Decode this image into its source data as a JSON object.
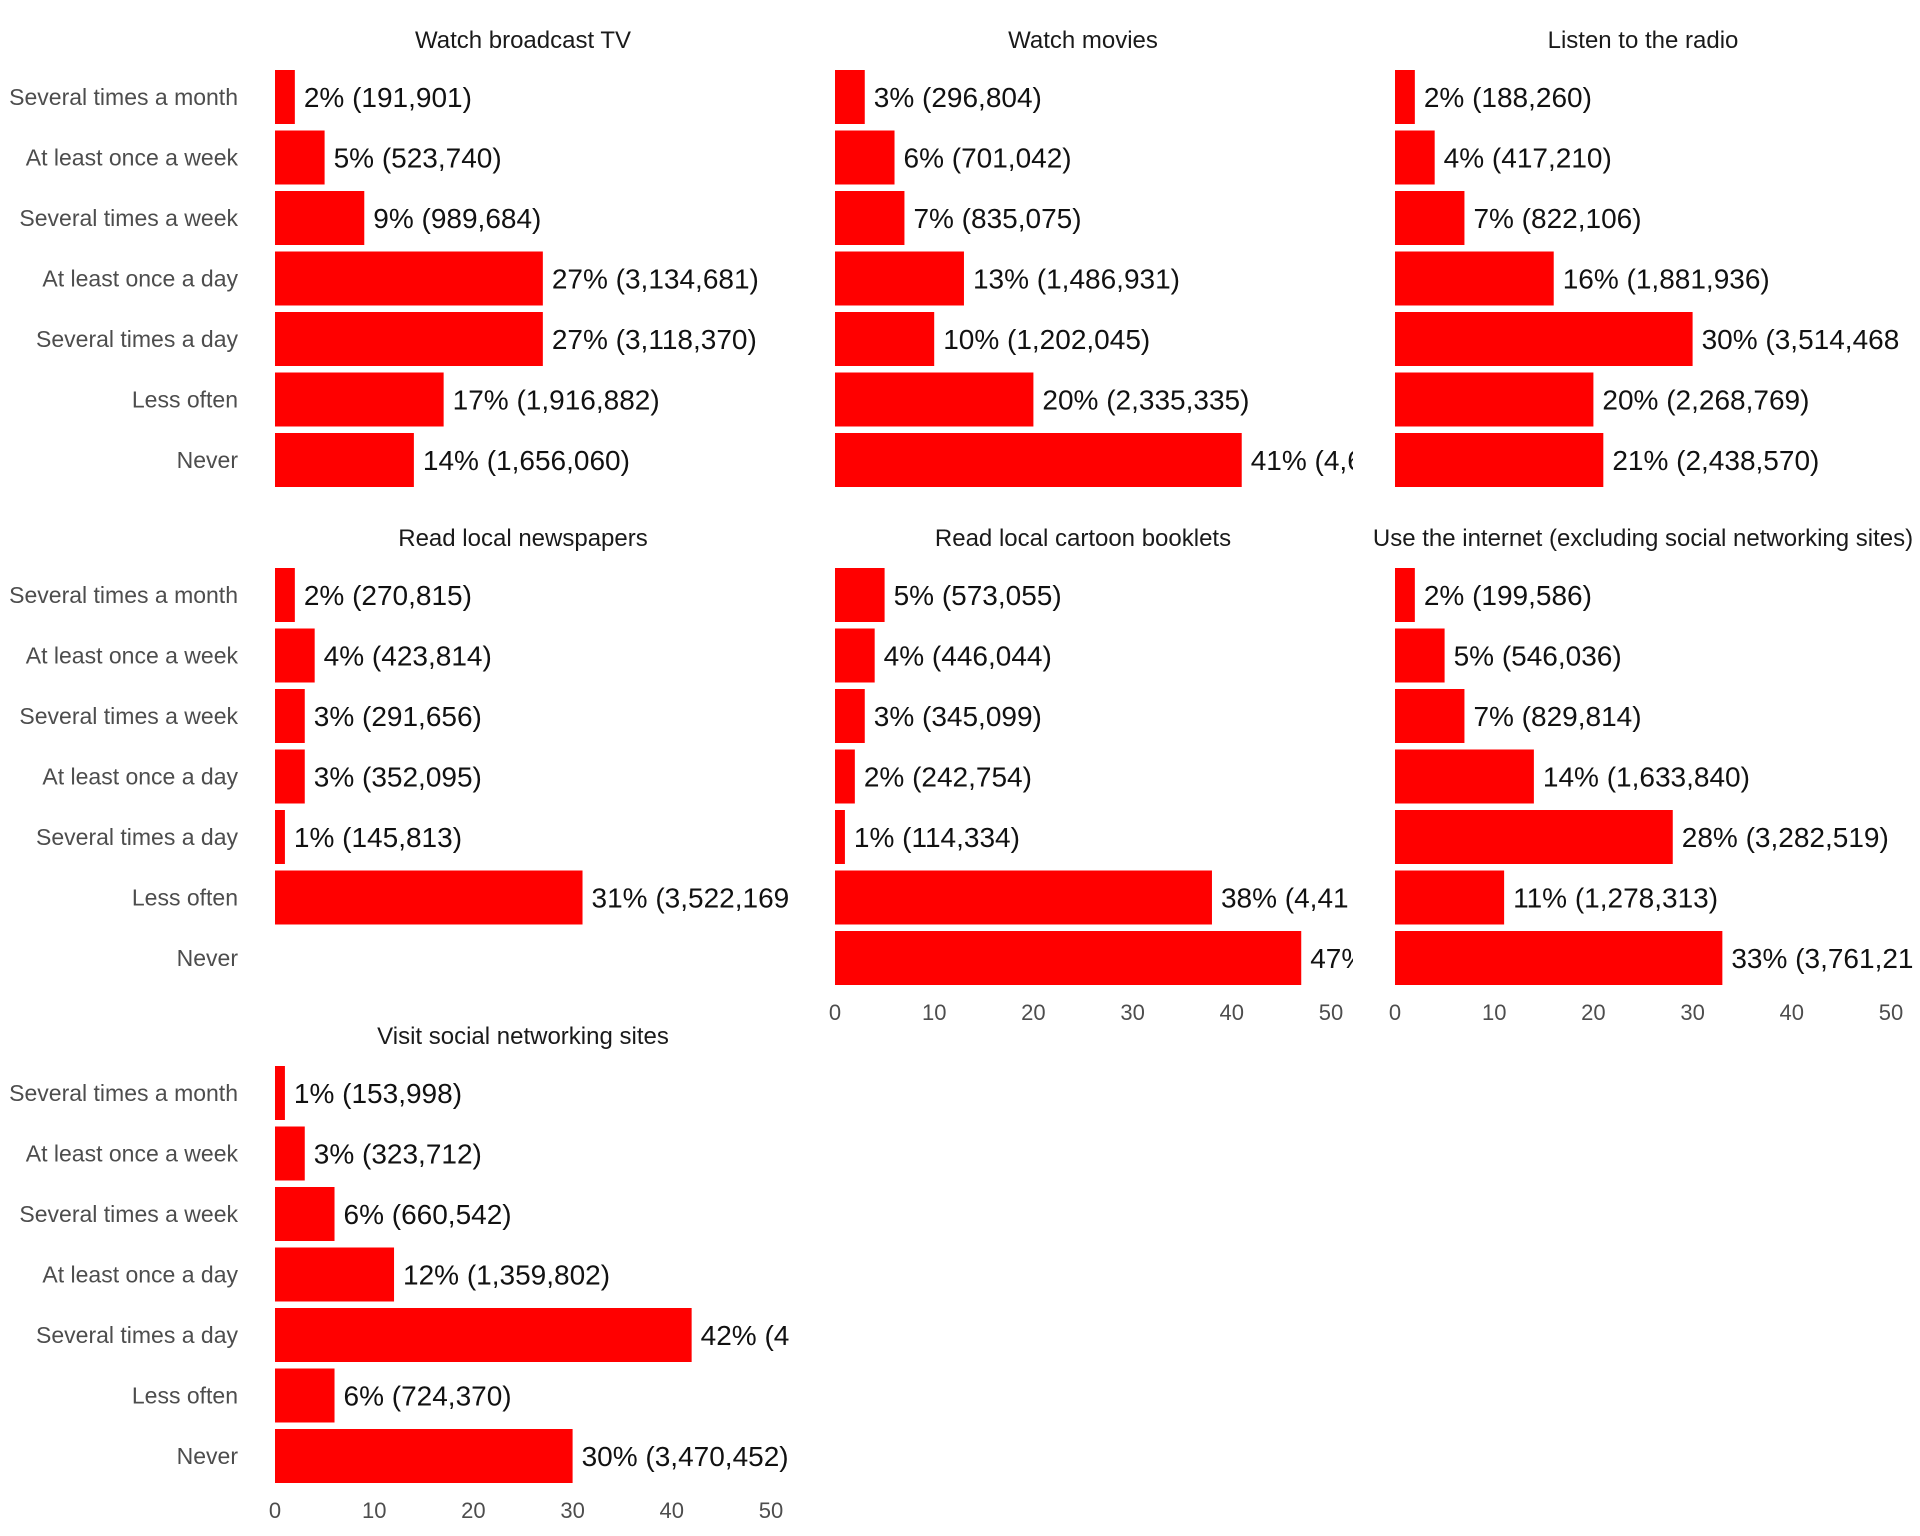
{
  "chart_data": {
    "type": "bar",
    "orientation": "horizontal",
    "bar_color": "#ff0000",
    "xlim": [
      0,
      50
    ],
    "x_ticks": [
      "0",
      "10",
      "20",
      "30",
      "40",
      "50"
    ],
    "categories": [
      "Several times a month",
      "At least once a week",
      "Several times a week",
      "At least once a day",
      "Several times a day",
      "Less often",
      "Never"
    ],
    "panels": [
      {
        "title": "Watch broadcast TV",
        "values": [
          2,
          5,
          9,
          27,
          27,
          17,
          14
        ],
        "labels": [
          "2% (191,901)",
          "5% (523,740)",
          "9% (989,684)",
          "27% (3,134,681)",
          "27% (3,118,370)",
          "17% (1,916,882)",
          "14% (1,656,060)"
        ]
      },
      {
        "title": "Watch movies",
        "values": [
          3,
          6,
          7,
          13,
          10,
          20,
          41
        ],
        "labels": [
          "3% (296,804)",
          "6% (701,042)",
          "7% (835,075)",
          "13% (1,486,931)",
          "10% (1,202,045)",
          "20% (2,335,335)",
          "41% (4,6"
        ]
      },
      {
        "title": "Listen to the radio",
        "values": [
          2,
          4,
          7,
          16,
          30,
          20,
          21
        ],
        "labels": [
          "2% (188,260)",
          "4% (417,210)",
          "7% (822,106)",
          "16% (1,881,936)",
          "30% (3,514,468",
          "20% (2,268,769)",
          "21% (2,438,570)"
        ]
      },
      {
        "title": "Read local newspapers",
        "values": [
          2,
          4,
          3,
          3,
          1,
          31,
          null
        ],
        "labels": [
          "2% (270,815)",
          "4% (423,814)",
          "3% (291,656)",
          "3% (352,095)",
          "1% (145,813)",
          "31% (3,522,169",
          ""
        ]
      },
      {
        "title": "Read local cartoon booklets",
        "values": [
          5,
          4,
          3,
          2,
          1,
          38,
          47
        ],
        "labels": [
          "5% (573,055)",
          "4% (446,044)",
          "3% (345,099)",
          "2% (242,754)",
          "1% (114,334)",
          "38% (4,41",
          "47%"
        ]
      },
      {
        "title": "Use the internet (excluding social networking sites)",
        "values": [
          2,
          5,
          7,
          14,
          28,
          11,
          33
        ],
        "labels": [
          "2% (199,586)",
          "5% (546,036)",
          "7% (829,814)",
          "14% (1,633,840)",
          "28% (3,282,519)",
          "11% (1,278,313)",
          "33% (3,761,21"
        ]
      },
      {
        "title": "Visit social networking sites",
        "values": [
          1,
          3,
          6,
          12,
          42,
          6,
          30
        ],
        "labels": [
          "1% (153,998)",
          "3% (323,712)",
          "6% (660,542)",
          "12% (1,359,802)",
          "42% (4",
          "6% (724,370)",
          "30% (3,470,452)"
        ]
      }
    ]
  }
}
